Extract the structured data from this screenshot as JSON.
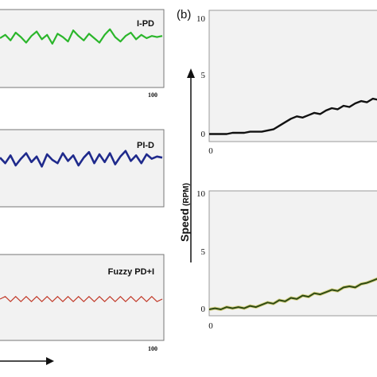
{
  "panel_b_label": "(b)",
  "speed_axis_label": "Speed",
  "speed_axis_unit": "(RPM)",
  "chart_data": [
    {
      "type": "line",
      "panel": "a",
      "title": "I-PD",
      "series": [
        {
          "color": "#2bb62b",
          "x_end": 100
        }
      ],
      "x_tick_labels": [
        "100"
      ],
      "y": [
        0.0,
        0.3,
        -0.2,
        0.5,
        0.1,
        -0.4,
        0.2,
        0.6,
        -0.1,
        0.3,
        -0.5,
        0.4,
        0.1,
        -0.3,
        0.7,
        0.2,
        -0.2,
        0.4,
        0.0,
        -0.4,
        0.3,
        0.8,
        0.1,
        -0.3,
        0.2,
        0.5,
        -0.1,
        0.3,
        0.0,
        0.2,
        0.1,
        0.2
      ]
    },
    {
      "type": "line",
      "panel": "a",
      "title": "PI-D",
      "series": [
        {
          "color": "#1f2a8c",
          "x_end": 100
        }
      ],
      "x_tick_labels": [],
      "y": [
        0.2,
        -0.3,
        0.4,
        -0.5,
        0.1,
        0.6,
        -0.2,
        0.3,
        -0.6,
        0.5,
        0.0,
        -0.3,
        0.6,
        -0.1,
        0.4,
        -0.5,
        0.2,
        0.7,
        -0.3,
        0.5,
        -0.2,
        0.6,
        -0.4,
        0.3,
        0.8,
        -0.1,
        0.4,
        -0.3,
        0.5,
        0.1,
        0.3,
        0.2
      ]
    },
    {
      "type": "line",
      "panel": "a",
      "title": "Fuzzy PD+I",
      "series": [
        {
          "color": "#c23b2a",
          "x_end": 100
        }
      ],
      "x_tick_labels": [
        "100"
      ],
      "y": [
        0.0,
        0.4,
        -0.4,
        0.4,
        -0.4,
        0.4,
        -0.4,
        0.4,
        -0.4,
        0.4,
        -0.4,
        0.4,
        -0.4,
        0.4,
        -0.4,
        0.4,
        -0.4,
        0.4,
        -0.4,
        0.4,
        -0.4,
        0.4,
        -0.4,
        0.4,
        -0.4,
        0.4,
        -0.4,
        0.4,
        -0.4,
        0.4,
        -0.4,
        0.0
      ]
    },
    {
      "type": "line",
      "panel": "b",
      "series": [
        {
          "color": "#111111"
        }
      ],
      "ylim": [
        0,
        10
      ],
      "y_tick_labels": [
        "0",
        "5",
        "10"
      ],
      "x_tick_labels": [
        "0"
      ],
      "y": [
        0.1,
        0.1,
        0.1,
        0.1,
        0.2,
        0.2,
        0.2,
        0.3,
        0.3,
        0.3,
        0.4,
        0.5,
        0.8,
        1.1,
        1.4,
        1.6,
        1.5,
        1.7,
        1.9,
        1.8,
        2.1,
        2.3,
        2.2,
        2.5,
        2.4,
        2.7,
        2.9,
        2.8,
        3.1,
        3.0
      ]
    },
    {
      "type": "line",
      "panel": "b",
      "series": [
        {
          "color": "#2e4a12"
        }
      ],
      "ylim": [
        0,
        10
      ],
      "y_tick_labels": [
        "0",
        "5",
        "10"
      ],
      "x_tick_labels": [
        "0"
      ],
      "y": [
        0.0,
        0.1,
        0.0,
        0.2,
        0.1,
        0.2,
        0.1,
        0.3,
        0.2,
        0.4,
        0.6,
        0.5,
        0.8,
        0.7,
        1.0,
        0.9,
        1.2,
        1.1,
        1.4,
        1.3,
        1.5,
        1.7,
        1.6,
        1.9,
        2.0,
        1.9,
        2.2,
        2.3,
        2.5,
        2.7
      ]
    }
  ]
}
